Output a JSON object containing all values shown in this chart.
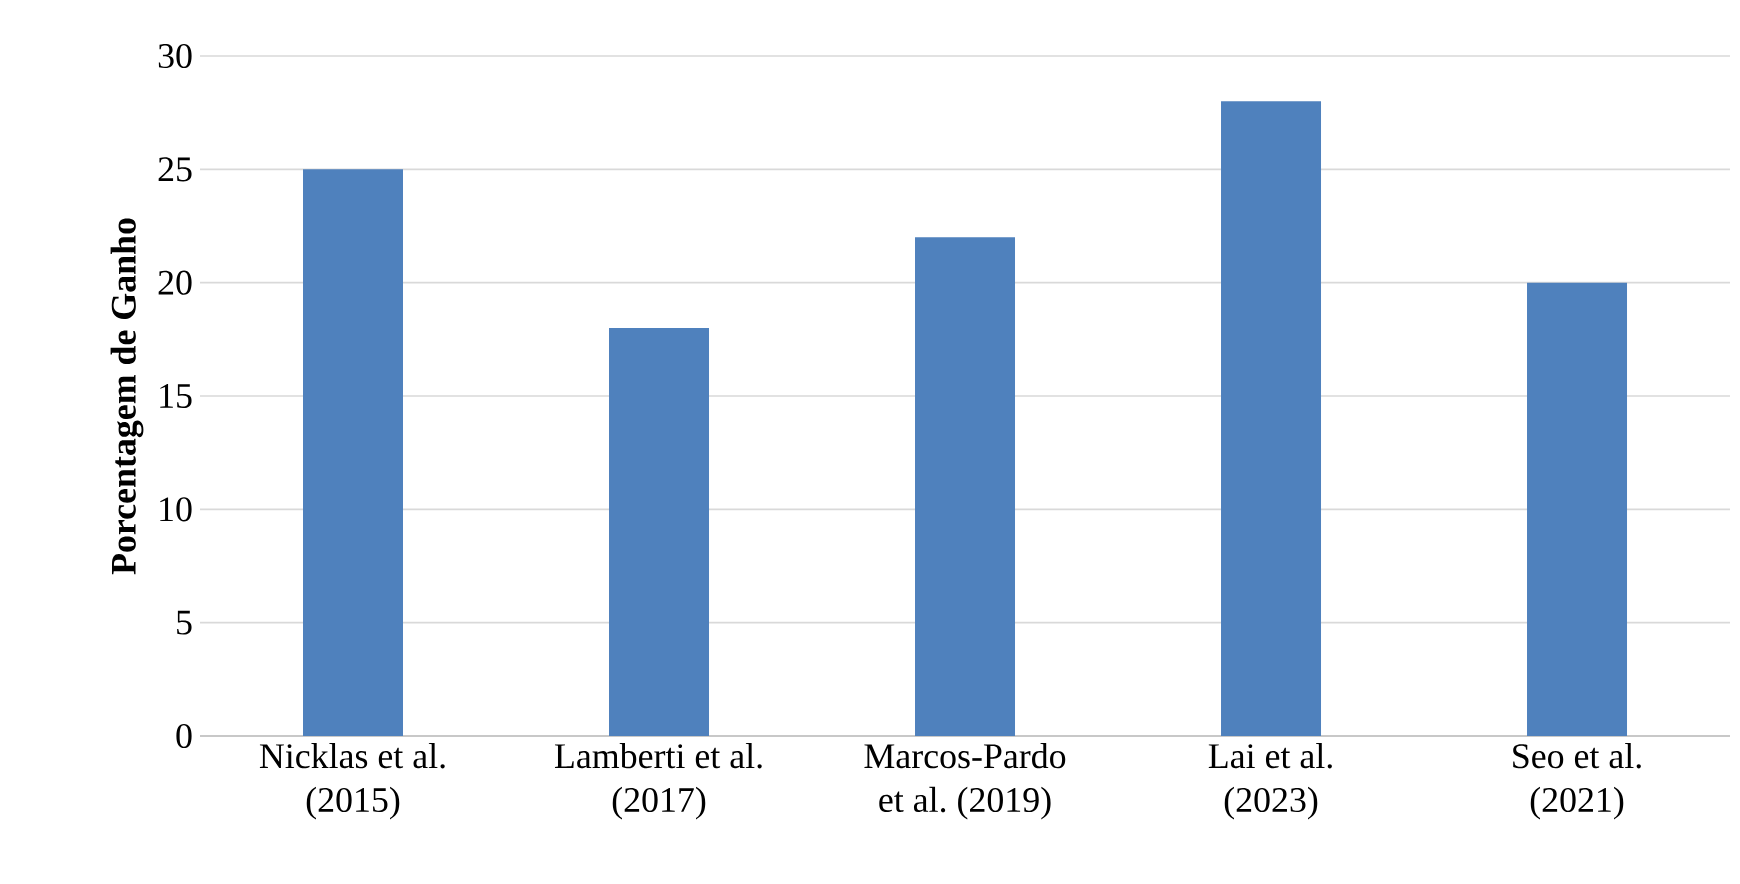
{
  "chart_data": {
    "type": "bar",
    "ylabel": "Porcentagem de Ganho",
    "categories": [
      "Nicklas et al. (2015)",
      "Lamberti et al. (2017)",
      "Marcos-Pardo et al. (2019)",
      "Lai et al. (2023)",
      "Seo et al. (2021)"
    ],
    "values": [
      25,
      18,
      22,
      28,
      20
    ],
    "color": "#4f81bd",
    "ylim": [
      0,
      30
    ],
    "yticks": [
      0,
      5,
      10,
      15,
      20,
      25,
      30
    ],
    "grid": "y"
  }
}
